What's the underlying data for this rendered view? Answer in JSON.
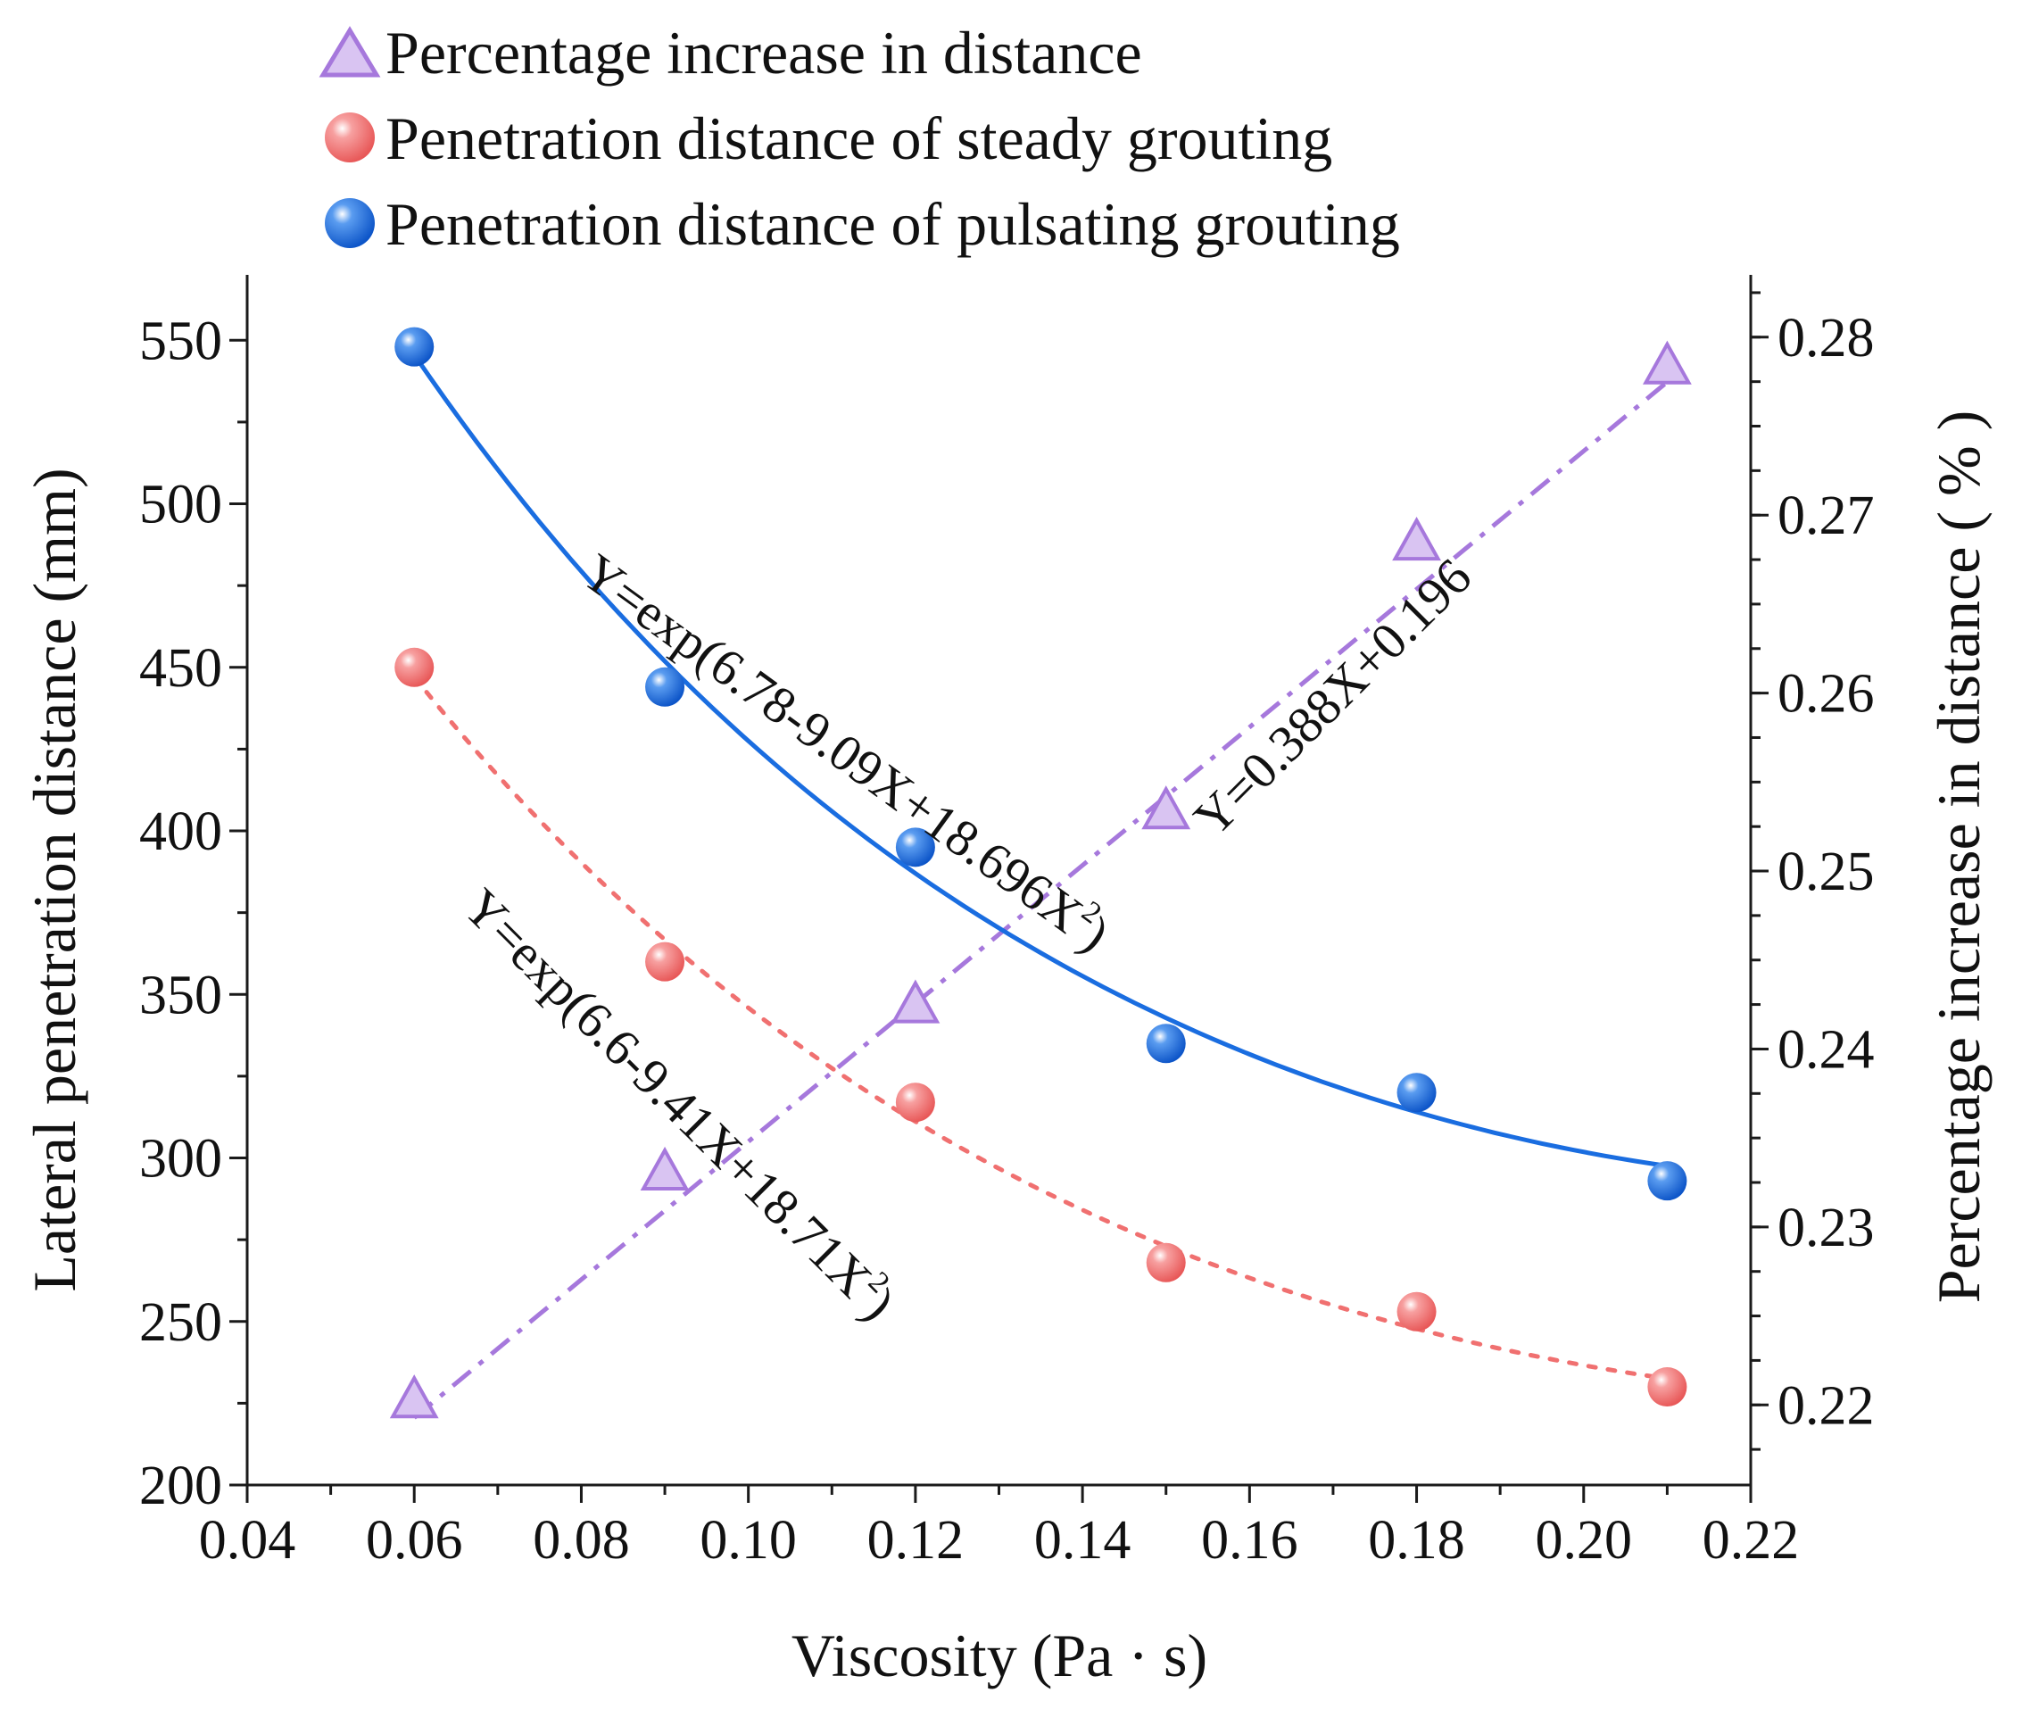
{
  "chart_data": {
    "type": "scatter",
    "xlabel": "Viscosity (Pa · s)",
    "ylabel": "Lateral penetration distance (mm)",
    "y2label": "Percentage increase in distance ( % )",
    "xlim": [
      0.04,
      0.22
    ],
    "ylim": [
      200,
      570
    ],
    "y2lim": [
      0.2155,
      0.2835
    ],
    "xticks": [
      "0.04",
      "0.06",
      "0.08",
      "0.10",
      "0.12",
      "0.14",
      "0.16",
      "0.18",
      "0.20",
      "0.22"
    ],
    "xtick_values": [
      0.04,
      0.06,
      0.08,
      0.1,
      0.12,
      0.14,
      0.16,
      0.18,
      0.2,
      0.22
    ],
    "yticks": [
      "200",
      "250",
      "300",
      "350",
      "400",
      "450",
      "500",
      "550"
    ],
    "ytick_values": [
      200,
      250,
      300,
      350,
      400,
      450,
      500,
      550
    ],
    "y2ticks": [
      "0.22",
      "0.23",
      "0.24",
      "0.25",
      "0.26",
      "0.27",
      "0.28"
    ],
    "y2tick_values": [
      0.22,
      0.23,
      0.24,
      0.25,
      0.26,
      0.27,
      0.28
    ],
    "legend_position": "top",
    "series": [
      {
        "name": "Percentage increase in distance",
        "axis": "right",
        "marker": "triangle",
        "color": "#a678dc",
        "x": [
          0.06,
          0.09,
          0.12,
          0.15,
          0.18,
          0.21
        ],
        "y": [
          0.2202,
          0.233,
          0.2424,
          0.2533,
          0.2684,
          0.2783
        ],
        "fit": {
          "kind": "linear",
          "label": "Y=0.388X+0.196",
          "style": "dash-dot",
          "a": 0.388,
          "b": 0.196
        }
      },
      {
        "name": "Penetration distance of steady grouting",
        "axis": "left",
        "marker": "sphere",
        "color": "#f07070",
        "x": [
          0.06,
          0.09,
          0.12,
          0.15,
          0.18,
          0.21
        ],
        "y": [
          450,
          360,
          317,
          268,
          253,
          230
        ],
        "fit": {
          "kind": "exp-quadratic",
          "label": "Y=exp(6.6-9.41X+18.71X",
          "label_sup": "2",
          "label_end": ")",
          "style": "dotted",
          "c0": 6.6,
          "c1": -9.41,
          "c2": 18.71
        }
      },
      {
        "name": "Penetration distance of pulsating grouting",
        "axis": "left",
        "marker": "sphere",
        "color": "#1a6de0",
        "x": [
          0.06,
          0.09,
          0.12,
          0.15,
          0.18,
          0.21
        ],
        "y": [
          548,
          444,
          395,
          335,
          320,
          293
        ],
        "fit": {
          "kind": "exp-quadratic",
          "label": "Y=exp(6.78-9.09X+18.696X",
          "label_sup": "2",
          "label_end": ")",
          "style": "solid",
          "c0": 6.78,
          "c1": -9.09,
          "c2": 18.696
        }
      }
    ]
  }
}
